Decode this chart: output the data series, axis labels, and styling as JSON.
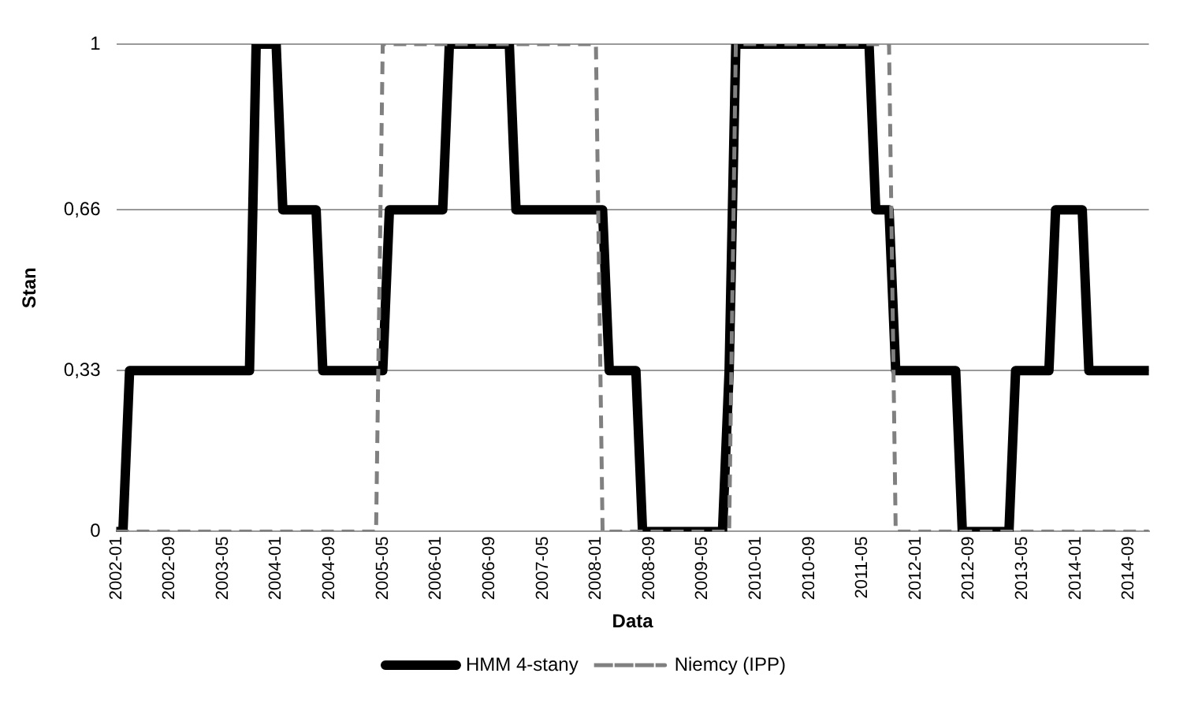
{
  "chart_data": {
    "type": "line",
    "xlabel": "Data",
    "ylabel": "Stan",
    "categories": [
      "2002-01",
      null,
      null,
      null,
      null,
      null,
      null,
      null,
      "2002-09",
      null,
      null,
      null,
      null,
      null,
      null,
      null,
      "2003-05",
      null,
      null,
      null,
      null,
      null,
      null,
      null,
      "2004-01",
      null,
      null,
      null,
      null,
      null,
      null,
      null,
      "2004-09",
      null,
      null,
      null,
      null,
      null,
      null,
      null,
      "2005-05",
      null,
      null,
      null,
      null,
      null,
      null,
      null,
      "2006-01",
      null,
      null,
      null,
      null,
      null,
      null,
      null,
      "2006-09",
      null,
      null,
      null,
      null,
      null,
      null,
      null,
      "2007-05",
      null,
      null,
      null,
      null,
      null,
      null,
      null,
      "2008-01",
      null,
      null,
      null,
      null,
      null,
      null,
      null,
      "2008-09",
      null,
      null,
      null,
      null,
      null,
      null,
      null,
      "2009-05",
      null,
      null,
      null,
      null,
      null,
      null,
      null,
      "2010-01",
      null,
      null,
      null,
      null,
      null,
      null,
      null,
      "2010-09",
      null,
      null,
      null,
      null,
      null,
      null,
      null,
      "2011-05",
      null,
      null,
      null,
      null,
      null,
      null,
      null,
      "2012-01",
      null,
      null,
      null,
      null,
      null,
      null,
      null,
      "2012-09",
      null,
      null,
      null,
      null,
      null,
      null,
      null,
      "2013-05",
      null,
      null,
      null,
      null,
      null,
      null,
      null,
      "2014-01",
      null,
      null,
      null,
      null,
      null,
      null,
      null,
      "2014-09",
      null,
      null,
      null
    ],
    "series": [
      {
        "name": "HMM 4-stany",
        "color": "#000000",
        "values": [
          0,
          0,
          0.33,
          0.33,
          0.33,
          0.33,
          0.33,
          0.33,
          0.33,
          0.33,
          0.33,
          0.33,
          0.33,
          0.33,
          0.33,
          0.33,
          0.33,
          0.33,
          0.33,
          0.33,
          0.33,
          1,
          1,
          1,
          1,
          0.66,
          0.66,
          0.66,
          0.66,
          0.66,
          0.66,
          0.33,
          0.33,
          0.33,
          0.33,
          0.33,
          0.33,
          0.33,
          0.33,
          0.33,
          0.33,
          0.66,
          0.66,
          0.66,
          0.66,
          0.66,
          0.66,
          0.66,
          0.66,
          0.66,
          1,
          1,
          1,
          1,
          1,
          1,
          1,
          1,
          1,
          1,
          0.66,
          0.66,
          0.66,
          0.66,
          0.66,
          0.66,
          0.66,
          0.66,
          0.66,
          0.66,
          0.66,
          0.66,
          0.66,
          0.66,
          0.33,
          0.33,
          0.33,
          0.33,
          0.33,
          0,
          0,
          0,
          0,
          0,
          0,
          0,
          0,
          0,
          0,
          0,
          0,
          0,
          0.33,
          1,
          1,
          1,
          1,
          1,
          1,
          1,
          1,
          1,
          1,
          1,
          1,
          1,
          1,
          1,
          1,
          1,
          1,
          1,
          1,
          1,
          0.66,
          0.66,
          0.66,
          0.33,
          0.33,
          0.33,
          0.33,
          0.33,
          0.33,
          0.33,
          0.33,
          0.33,
          0.33,
          0,
          0,
          0,
          0,
          0,
          0,
          0,
          0,
          0.33,
          0.33,
          0.33,
          0.33,
          0.33,
          0.33,
          0.66,
          0.66,
          0.66,
          0.66,
          0.66,
          0.33,
          0.33,
          0.33,
          0.33,
          0.33,
          0.33,
          0.33,
          0.33,
          0.33,
          0.33
        ]
      },
      {
        "name": "Niemcy (IPP)",
        "color": "#808080",
        "line_style": "dashed",
        "values": [
          0,
          0,
          0,
          0,
          0,
          0,
          0,
          0,
          0,
          0,
          0,
          0,
          0,
          0,
          0,
          0,
          0,
          0,
          0,
          0,
          0,
          0,
          0,
          0,
          0,
          0,
          0,
          0,
          0,
          0,
          0,
          0,
          0,
          0,
          0,
          0,
          0,
          0,
          0,
          0,
          1,
          1,
          1,
          1,
          1,
          1,
          1,
          1,
          1,
          1,
          1,
          1,
          1,
          1,
          1,
          1,
          1,
          1,
          1,
          1,
          1,
          1,
          1,
          1,
          1,
          1,
          1,
          1,
          1,
          1,
          1,
          1,
          1,
          0,
          0,
          0,
          0,
          0,
          0,
          0,
          0,
          0,
          0,
          0,
          0,
          0,
          0,
          0,
          0,
          0,
          0,
          0,
          0,
          1,
          1,
          1,
          1,
          1,
          1,
          1,
          1,
          1,
          1,
          1,
          1,
          1,
          1,
          1,
          1,
          1,
          1,
          1,
          1,
          1,
          1,
          1,
          1,
          0,
          0,
          0,
          0,
          0,
          0,
          0,
          0,
          0,
          0,
          0,
          0,
          0,
          0,
          0,
          0,
          0,
          0,
          0,
          0,
          0,
          0,
          0,
          0,
          0,
          0,
          0,
          0,
          0,
          0,
          0,
          0,
          0,
          0,
          0,
          0,
          0,
          0,
          0
        ]
      }
    ],
    "ylim": [
      0,
      1
    ],
    "yticks": [
      0,
      {
        "value": 0.33,
        "label": "0,33"
      },
      {
        "value": 0.66,
        "label": "0,66"
      },
      1
    ],
    "grid": "y",
    "legend": "bottom",
    "marker": "none",
    "line_style": "solid"
  }
}
